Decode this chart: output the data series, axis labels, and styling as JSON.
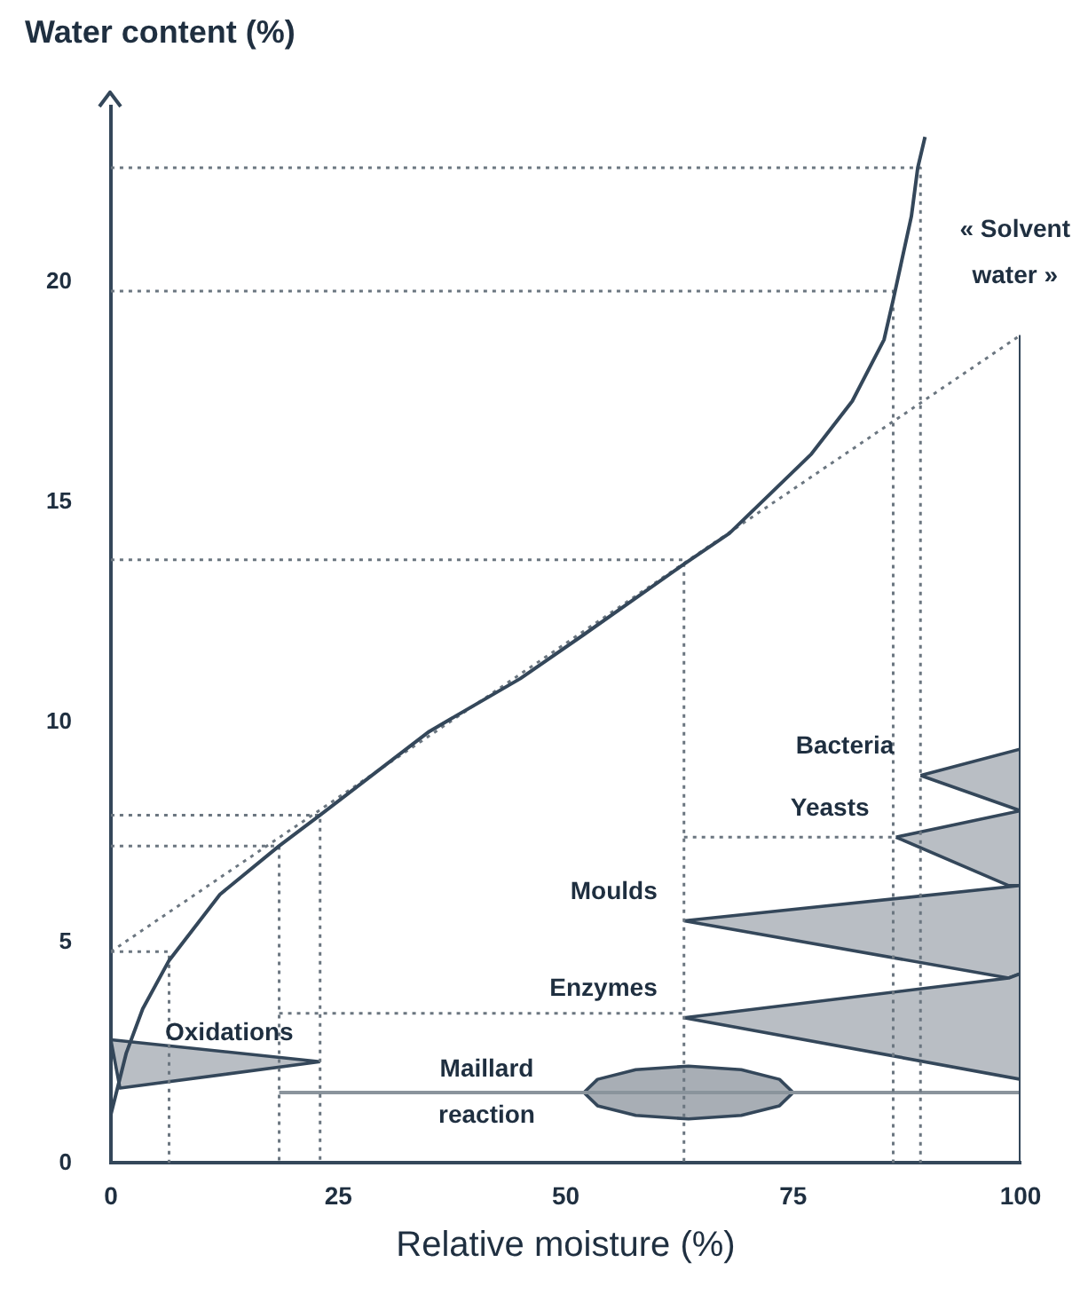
{
  "chart_data": {
    "type": "line",
    "xlabel": "Relative moisture (%)",
    "ylabel": "Water content (%)",
    "xlim": [
      0,
      100
    ],
    "ylim": [
      0,
      24
    ],
    "xticks": [
      0,
      25,
      50,
      75,
      100
    ],
    "yticks": [
      0,
      5,
      10,
      15,
      20
    ],
    "grid": false,
    "legend": false,
    "marker": "none",
    "series": [
      {
        "type": "line",
        "color": "#34475a",
        "line_style": "solid",
        "x": [
          0,
          1.7,
          3.5,
          6.4,
          12,
          18.5,
          23,
          35,
          45,
          52,
          63,
          68,
          77,
          81.5,
          85,
          86,
          88,
          88.7,
          89.5
        ],
        "values": [
          1.1,
          2.5,
          3.5,
          4.6,
          6.1,
          7.2,
          7.9,
          9.8,
          11.0,
          12.0,
          13.6,
          14.3,
          16.1,
          17.3,
          18.7,
          19.6,
          21.5,
          22.6,
          23.3
        ]
      },
      {
        "type": "line",
        "color": "#6b7680",
        "line_style": "dotted",
        "x": [
          0,
          100
        ],
        "values": [
          4.8,
          18.8
        ]
      },
      {
        "type": "line",
        "color": "#6b7680",
        "line_style": "dotted",
        "x": [
          0,
          89,
          89
        ],
        "values": [
          22.6,
          22.6,
          0
        ]
      },
      {
        "type": "line",
        "color": "#6b7680",
        "line_style": "dotted",
        "x": [
          0,
          86,
          86
        ],
        "values": [
          19.8,
          19.8,
          0
        ]
      },
      {
        "type": "line",
        "color": "#6b7680",
        "line_style": "dotted",
        "x": [
          0,
          63,
          63
        ],
        "values": [
          13.7,
          13.7,
          0
        ]
      },
      {
        "type": "line",
        "color": "#6b7680",
        "line_style": "dotted",
        "x": [
          0,
          23,
          23
        ],
        "values": [
          7.9,
          7.9,
          0
        ]
      },
      {
        "type": "line",
        "color": "#6b7680",
        "line_style": "dotted",
        "x": [
          0,
          18.5,
          18.5
        ],
        "values": [
          7.2,
          7.2,
          0
        ]
      },
      {
        "type": "line",
        "color": "#6b7680",
        "line_style": "dotted",
        "x": [
          0,
          6.4,
          6.4
        ],
        "values": [
          4.8,
          4.8,
          0
        ]
      },
      {
        "type": "line",
        "color": "#6b7680",
        "line_style": "dotted",
        "x": [
          18.5,
          63
        ],
        "values": [
          3.4,
          3.4
        ]
      },
      {
        "type": "line",
        "color": "#6b7680",
        "line_style": "dotted",
        "x": [
          63,
          86.3
        ],
        "values": [
          7.4,
          7.4
        ]
      },
      {
        "type": "line",
        "name": "« Solvent water »",
        "color": "#34475a",
        "line_style": "solid",
        "x": [
          100,
          100
        ],
        "values": [
          0,
          18.8
        ]
      },
      {
        "type": "line",
        "name": "Maillard reaction",
        "color": "#8a949c",
        "line_style": "solid",
        "x": [
          18.5,
          100
        ],
        "values": [
          1.6,
          1.6
        ]
      },
      {
        "type": "area",
        "name": "Oxidations",
        "color": "#b9bec4",
        "x": [
          23,
          1,
          0,
          23
        ],
        "values": [
          2.3,
          1.7,
          2.8,
          2.3
        ]
      },
      {
        "type": "area",
        "name": "Enzymes",
        "color": "#b9bec4",
        "x": [
          63,
          98.7,
          100,
          100,
          63
        ],
        "values": [
          3.3,
          4.2,
          4.3,
          1.9,
          3.3
        ]
      },
      {
        "type": "area",
        "name": "Moulds",
        "color": "#b9bec4",
        "x": [
          63,
          100,
          100,
          98.7,
          63
        ],
        "values": [
          5.5,
          6.3,
          4.3,
          4.2,
          5.5
        ]
      },
      {
        "type": "area",
        "name": "Yeasts",
        "color": "#b9bec4",
        "x": [
          86.3,
          100,
          100,
          98.7,
          86.3
        ],
        "values": [
          7.4,
          8.0,
          6.3,
          6.3,
          7.4
        ]
      },
      {
        "type": "area",
        "name": "Bacteria",
        "color": "#b9bec4",
        "x": [
          89,
          100,
          100,
          89
        ],
        "values": [
          8.8,
          9.4,
          8.0,
          8.8
        ]
      },
      {
        "type": "area",
        "color": "#a8aeb5",
        "x": [
          75,
          73.5,
          69.3,
          63.5,
          57.7,
          53.5,
          52,
          53.5,
          57.7,
          63.5,
          69.3,
          73.5,
          75
        ],
        "values": [
          1.6,
          1.9,
          2.12,
          2.2,
          2.12,
          1.9,
          1.6,
          1.3,
          1.08,
          1.0,
          1.08,
          1.3,
          1.6
        ]
      }
    ]
  }
}
